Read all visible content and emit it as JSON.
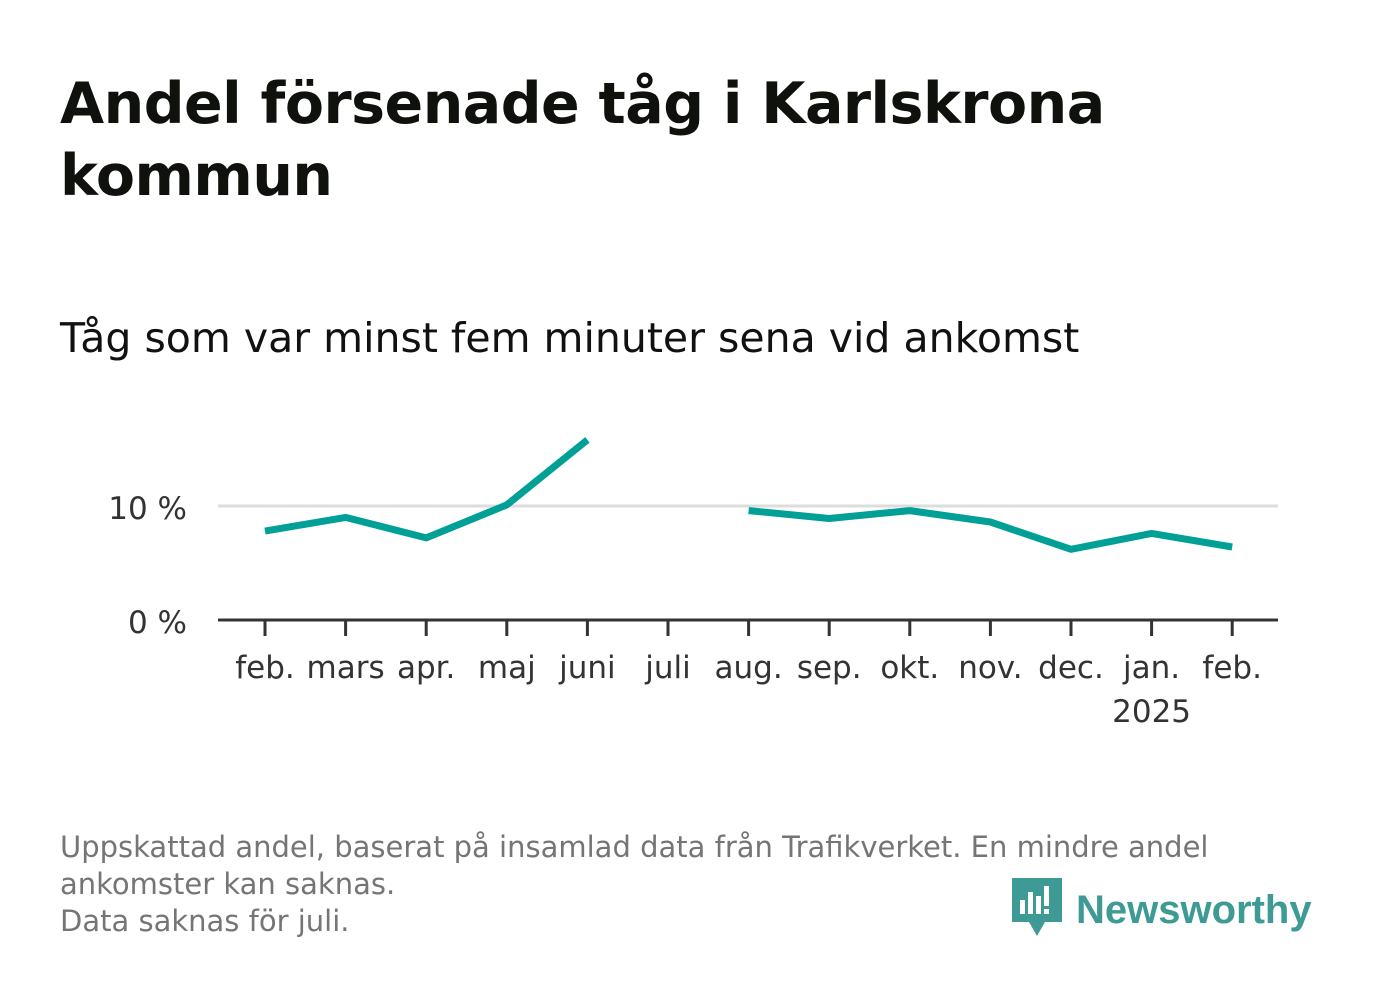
{
  "title": "Andel försenade tåg i Karlskrona kommun",
  "subtitle": "Tåg som var minst fem minuter sena vid ankomst",
  "footnote": {
    "line1": "Uppskattad andel, baserat på insamlad data från Trafikverket. En mindre andel",
    "line2": "ankomster kan saknas.",
    "line3": "Data saknas för juli."
  },
  "logo": {
    "text": "Newsworthy",
    "icon": "newsworthy-bar-chart-icon",
    "color": "#3e9a94"
  },
  "chart_data": {
    "type": "line",
    "categories": [
      "feb.",
      "mars",
      "apr.",
      "maj",
      "juni",
      "juli",
      "aug.",
      "sep.",
      "okt.",
      "nov.",
      "dec.",
      "jan.",
      "feb."
    ],
    "year_label": {
      "category_index": 11,
      "text": "2025"
    },
    "series": [
      {
        "values": [
          7.8,
          9.0,
          7.2,
          10.1,
          15.8,
          null,
          9.6,
          8.9,
          9.6,
          8.6,
          6.2,
          7.6,
          6.4
        ],
        "color": "#00a096"
      }
    ],
    "yticks": [
      0,
      10
    ],
    "ytick_labels": [
      "0 %",
      "10 %"
    ],
    "ylim": [
      0,
      16
    ],
    "grid": true,
    "colors": {
      "grid": "#dddddd",
      "axis": "#333333",
      "line": "#00a096"
    }
  }
}
